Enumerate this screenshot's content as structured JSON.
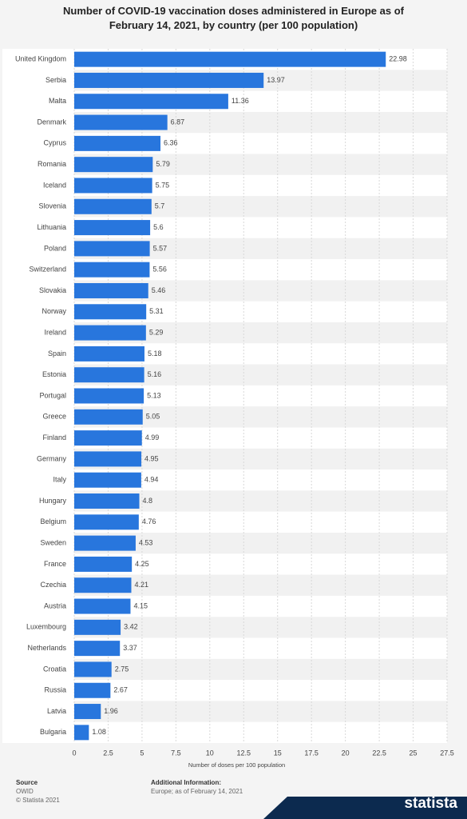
{
  "chart_data": {
    "type": "bar",
    "orientation": "horizontal",
    "title": "Number of COVID-19 vaccination doses administered in Europe as of February 14, 2021, by country (per 100 population)",
    "categories": [
      "United Kingdom",
      "Serbia",
      "Malta",
      "Denmark",
      "Cyprus",
      "Romania",
      "Iceland",
      "Slovenia",
      "Lithuania",
      "Poland",
      "Switzerland",
      "Slovakia",
      "Norway",
      "Ireland",
      "Spain",
      "Estonia",
      "Portugal",
      "Greece",
      "Finland",
      "Germany",
      "Italy",
      "Hungary",
      "Belgium",
      "Sweden",
      "France",
      "Czechia",
      "Austria",
      "Luxembourg",
      "Netherlands",
      "Croatia",
      "Russia",
      "Latvia",
      "Bulgaria"
    ],
    "values": [
      22.98,
      13.97,
      11.36,
      6.87,
      6.36,
      5.79,
      5.75,
      5.7,
      5.6,
      5.57,
      5.56,
      5.46,
      5.31,
      5.29,
      5.18,
      5.16,
      5.13,
      5.05,
      4.99,
      4.95,
      4.94,
      4.8,
      4.76,
      4.53,
      4.25,
      4.21,
      4.15,
      3.42,
      3.37,
      2.75,
      2.67,
      1.96,
      1.08
    ],
    "color": "#2876dd",
    "x_label": "Number of doses per 100 population",
    "xlim": [
      0,
      27.5
    ],
    "xticks": [
      0,
      2.5,
      5,
      7.5,
      10,
      12.5,
      15,
      17.5,
      20,
      22.5,
      25,
      27.5
    ],
    "grid": true
  },
  "source": {
    "heading": "Source",
    "lines": [
      "OWID",
      "© Statista 2021"
    ]
  },
  "additional_information": {
    "heading": "Additional Information:",
    "text": "Europe; as of February 14, 2021"
  },
  "logo": "statista"
}
